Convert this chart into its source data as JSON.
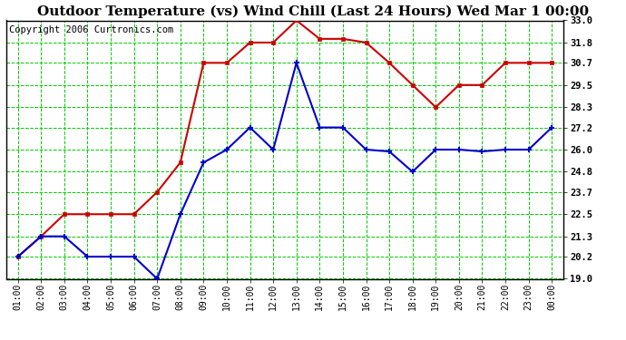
{
  "title": "Outdoor Temperature (vs) Wind Chill (Last 24 Hours) Wed Mar 1 00:00",
  "copyright": "Copyright 2006 Curtronics.com",
  "x_labels": [
    "01:00",
    "02:00",
    "03:00",
    "04:00",
    "05:00",
    "06:00",
    "07:00",
    "08:00",
    "09:00",
    "10:00",
    "11:00",
    "12:00",
    "13:00",
    "14:00",
    "15:00",
    "16:00",
    "17:00",
    "18:00",
    "19:00",
    "20:00",
    "21:00",
    "22:00",
    "23:00",
    "00:00"
  ],
  "temp_data": [
    20.2,
    21.3,
    21.3,
    20.2,
    20.2,
    20.2,
    19.0,
    22.5,
    25.3,
    26.0,
    27.2,
    26.0,
    30.7,
    27.2,
    27.2,
    26.0,
    25.9,
    24.8,
    26.0,
    26.0,
    25.9,
    26.0,
    26.0,
    27.2
  ],
  "windchill_data": [
    20.2,
    21.3,
    22.5,
    22.5,
    22.5,
    22.5,
    23.7,
    25.3,
    30.7,
    30.7,
    31.8,
    31.8,
    33.0,
    32.0,
    32.0,
    31.8,
    30.7,
    29.5,
    28.3,
    29.5,
    29.5,
    30.7,
    30.7,
    30.7
  ],
  "temp_color": "#0000cc",
  "windchill_color": "#cc0000",
  "bg_color": "#ffffff",
  "plot_bg_color": "#ffffff",
  "grid_color": "#00cc00",
  "ylim_min": 19.0,
  "ylim_max": 33.0,
  "y_ticks": [
    19.0,
    20.2,
    21.3,
    22.5,
    23.7,
    24.8,
    26.0,
    27.2,
    28.3,
    29.5,
    30.7,
    31.8,
    33.0
  ],
  "title_fontsize": 11,
  "copyright_fontsize": 7.5
}
